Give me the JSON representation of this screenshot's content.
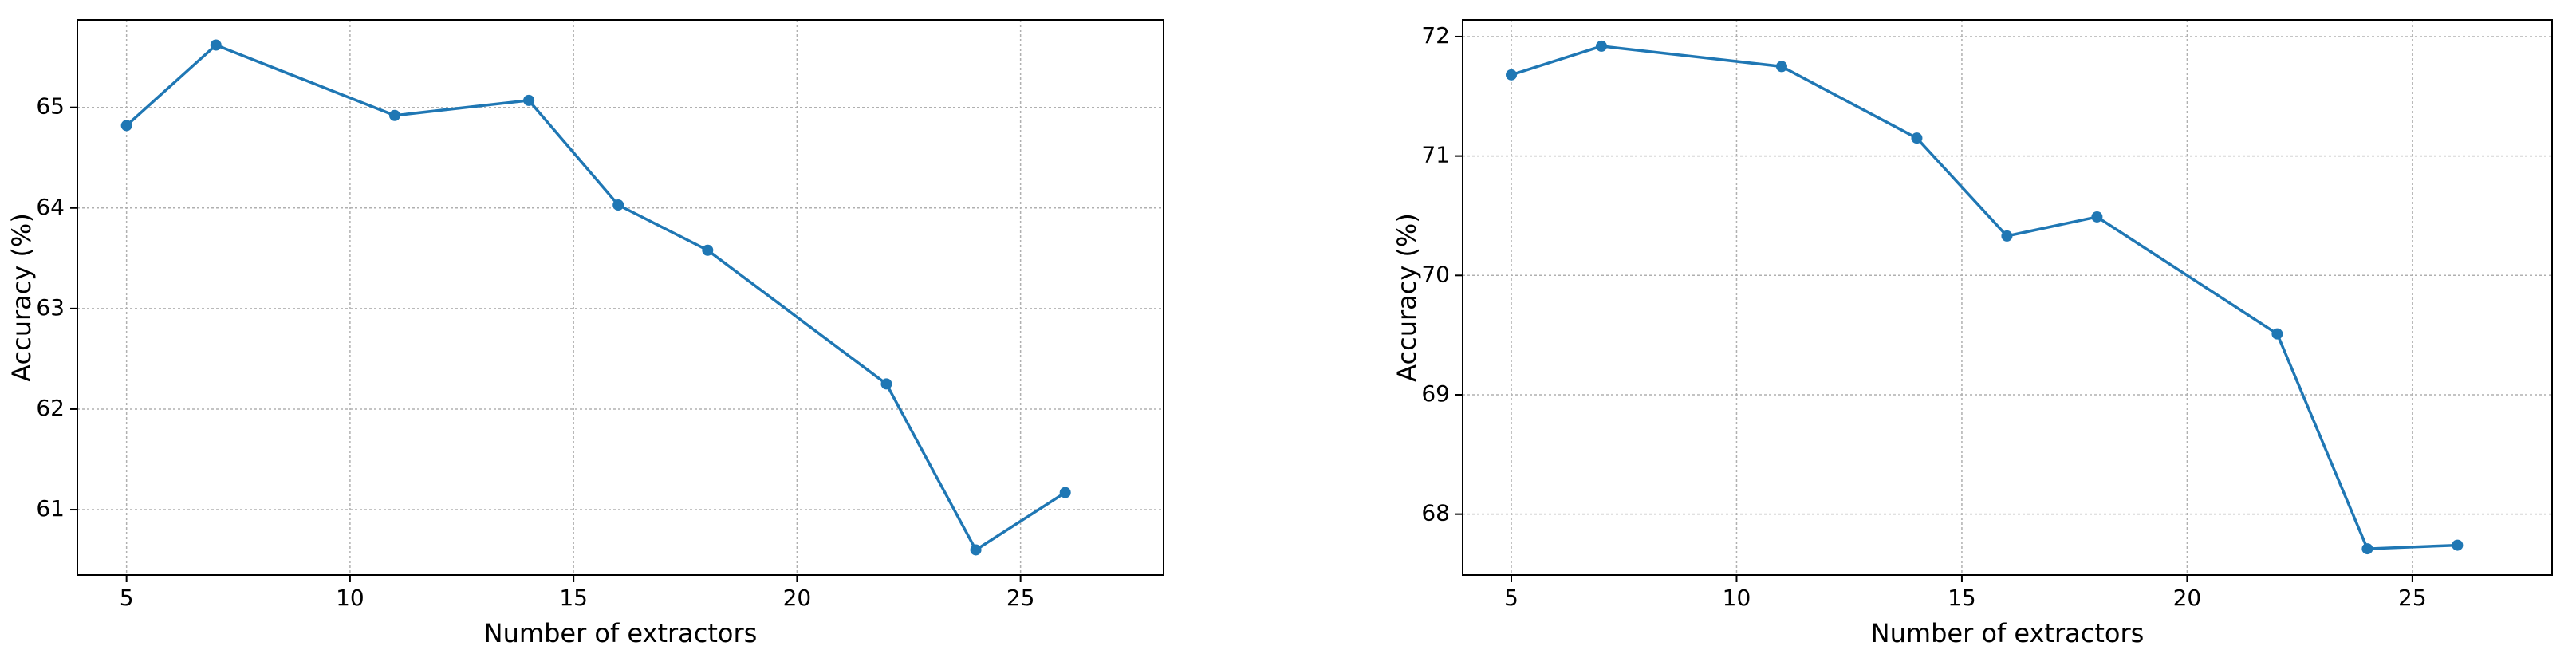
{
  "chart_data": [
    {
      "type": "line",
      "x_label": "Number of extractors",
      "y_label": "Accuracy (%)",
      "x": [
        5,
        7,
        11,
        14,
        16,
        18,
        22,
        24,
        26
      ],
      "series": [
        {
          "color": "#1f77b4",
          "values": [
            64.82,
            65.62,
            64.92,
            65.07,
            64.03,
            63.58,
            62.25,
            60.6,
            61.17
          ]
        }
      ],
      "xlim": [
        3.9,
        28.2
      ],
      "ylim": [
        60.35,
        65.87
      ],
      "xticks": [
        5,
        10,
        15,
        20,
        25
      ],
      "yticks": [
        61,
        62,
        63,
        64,
        65
      ],
      "grid": true
    },
    {
      "type": "line",
      "x_label": "Number of extractors",
      "y_label": "Accuracy (%)",
      "x": [
        5,
        7,
        11,
        14,
        16,
        18,
        22,
        24,
        26
      ],
      "series": [
        {
          "color": "#1f77b4",
          "values": [
            71.68,
            71.92,
            71.75,
            71.15,
            70.33,
            70.49,
            69.51,
            67.71,
            67.74
          ]
        }
      ],
      "xlim": [
        3.92,
        28.1
      ],
      "ylim": [
        67.49,
        72.14
      ],
      "xticks": [
        5,
        10,
        15,
        20,
        25
      ],
      "yticks": [
        68,
        69,
        70,
        71,
        72
      ],
      "grid": true
    }
  ]
}
